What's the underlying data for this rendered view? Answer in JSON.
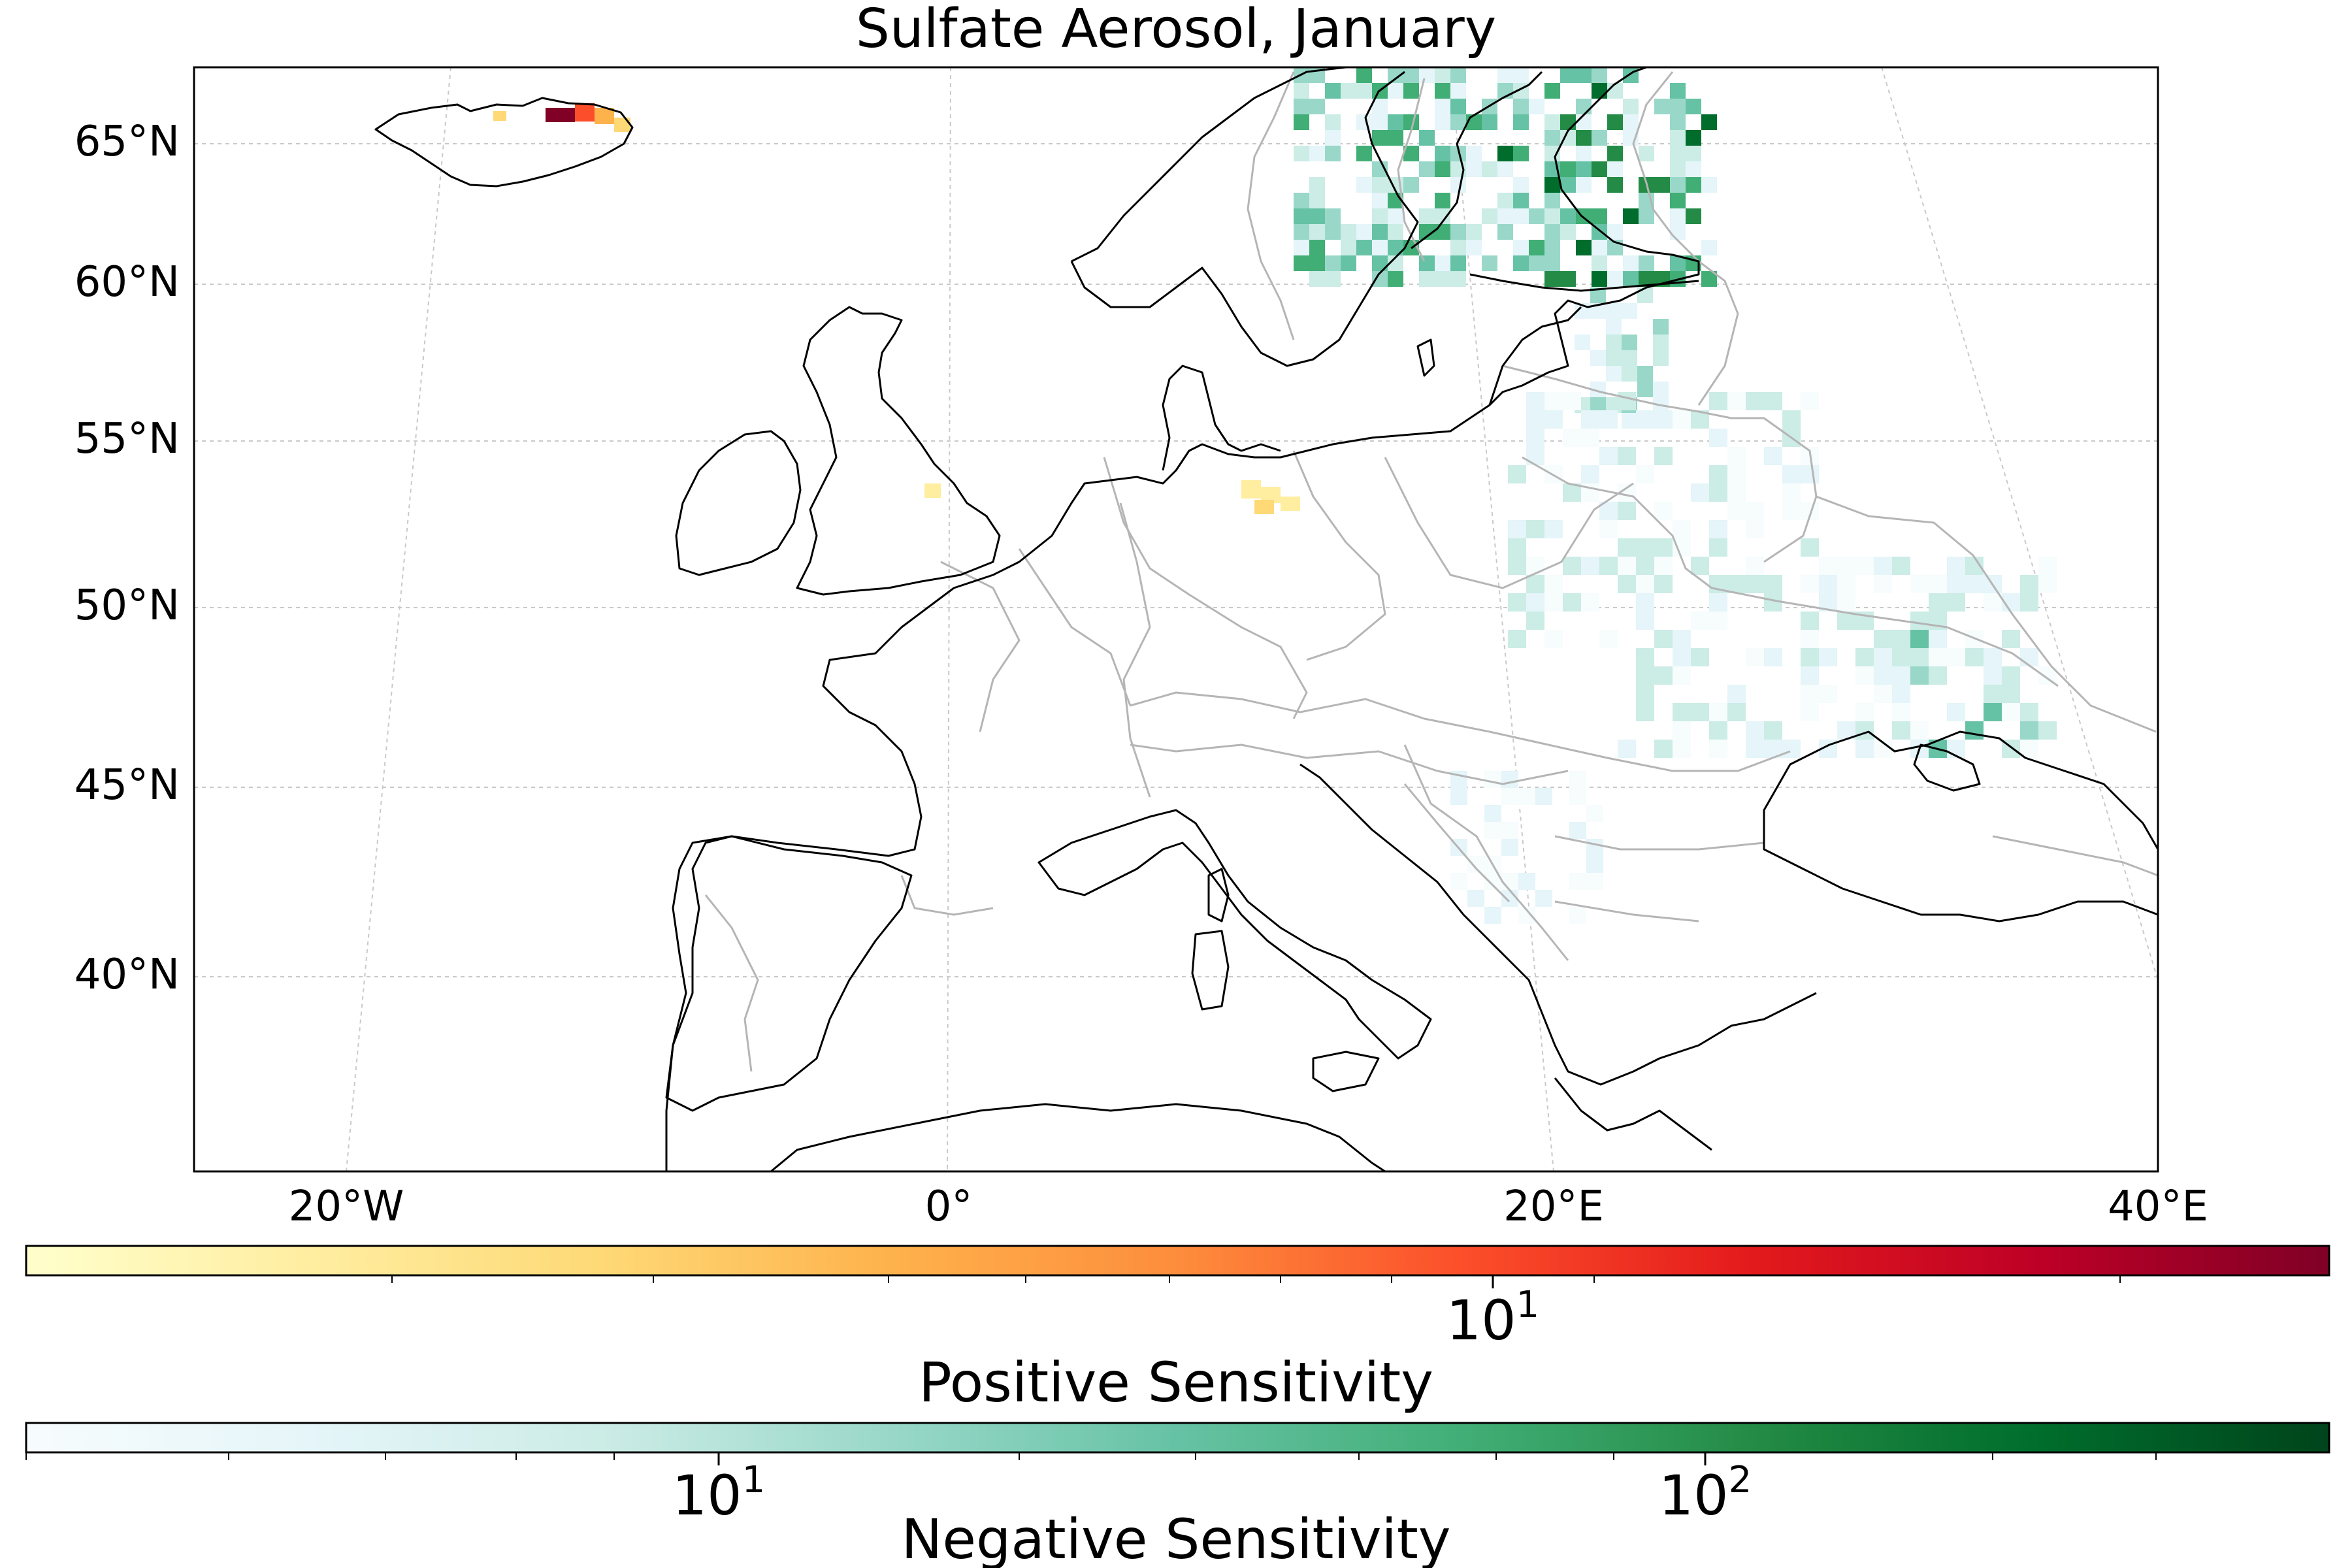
{
  "title": "Sulfate Aerosol, January",
  "map": {
    "lat_ticks": [
      "65°N",
      "60°N",
      "55°N",
      "50°N",
      "45°N",
      "40°N"
    ],
    "lon_ticks": [
      "20°W",
      "0°",
      "20°E",
      "40°E"
    ],
    "extent": {
      "lon": [
        -25,
        40
      ],
      "lat": [
        34,
        67
      ]
    },
    "ocean_color": "#ffffff",
    "coastline_color": "#000000",
    "border_color": "#b5b5b5"
  },
  "colorbars": {
    "positive": {
      "label": "Positive Sensitivity",
      "colormap": "YlOrRd",
      "scale": "log",
      "tick_labels": [
        "10^1"
      ],
      "colors": [
        "#ffffcc",
        "#ffeda0",
        "#fed976",
        "#feb24c",
        "#fd8d3c",
        "#fc4e2a",
        "#e31a1c",
        "#bd0026",
        "#800026"
      ]
    },
    "negative": {
      "label": "Negative Sensitivity",
      "colormap": "BuGn",
      "scale": "log",
      "tick_labels": [
        "10^1",
        "10^2"
      ],
      "colors": [
        "#f7fcfd",
        "#e5f5f9",
        "#ccece6",
        "#99d8c9",
        "#66c2a4",
        "#41ae76",
        "#238b45",
        "#006d2c",
        "#00441b"
      ]
    }
  }
}
